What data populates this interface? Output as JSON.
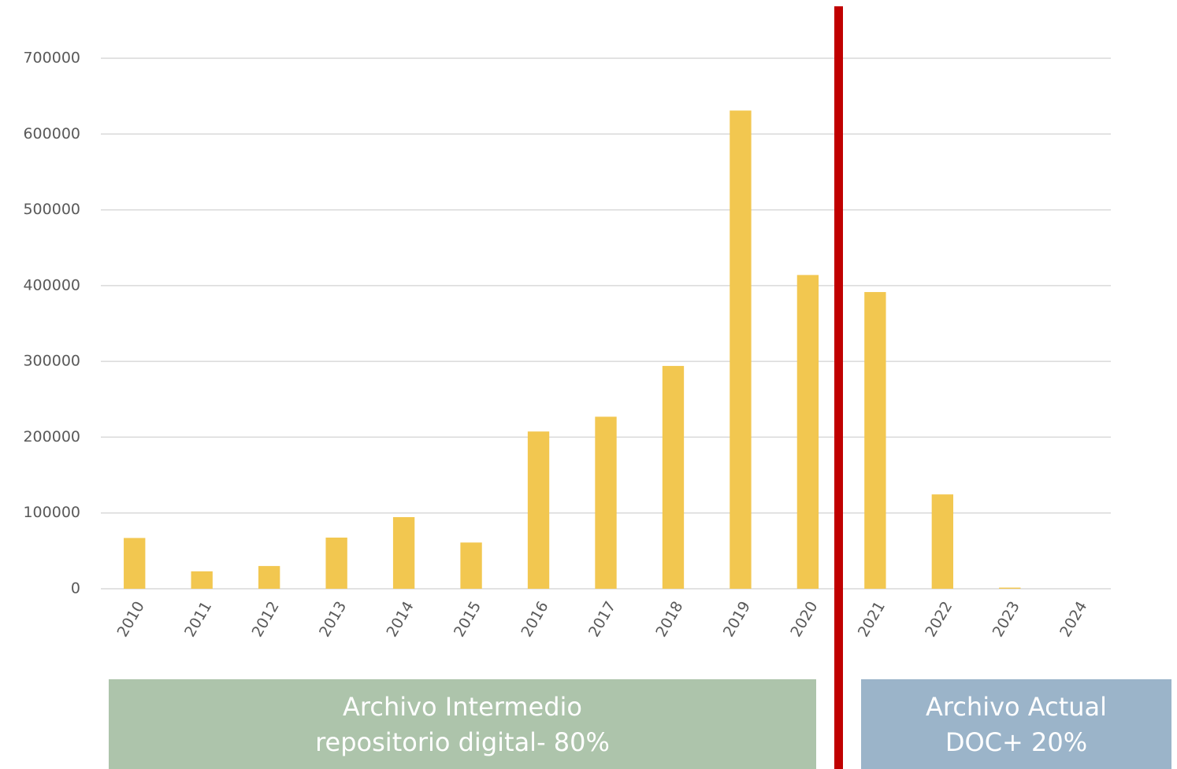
{
  "chart_data": {
    "type": "bar",
    "categories": [
      "2010",
      "2011",
      "2012",
      "2013",
      "2014",
      "2015",
      "2016",
      "2017",
      "2018",
      "2019",
      "2020",
      "2021",
      "2022",
      "2023",
      "2024"
    ],
    "values": [
      67000,
      23000,
      30000,
      67500,
      94500,
      61000,
      207500,
      227000,
      294000,
      631000,
      414000,
      391500,
      124500,
      1500,
      0
    ],
    "color": "#f2c750",
    "ylim": [
      0,
      700000
    ],
    "yticks": [
      0,
      100000,
      200000,
      300000,
      400000,
      500000,
      600000,
      700000
    ],
    "grid": true,
    "annotations": [
      {
        "lines": [
          "Archivo Intermedio",
          "repositorio digital- 80%"
        ],
        "color": "#adc4ab"
      },
      {
        "lines": [
          "Archivo Actual",
          "DOC+ 20%"
        ],
        "color": "#9bb4c9"
      }
    ]
  }
}
